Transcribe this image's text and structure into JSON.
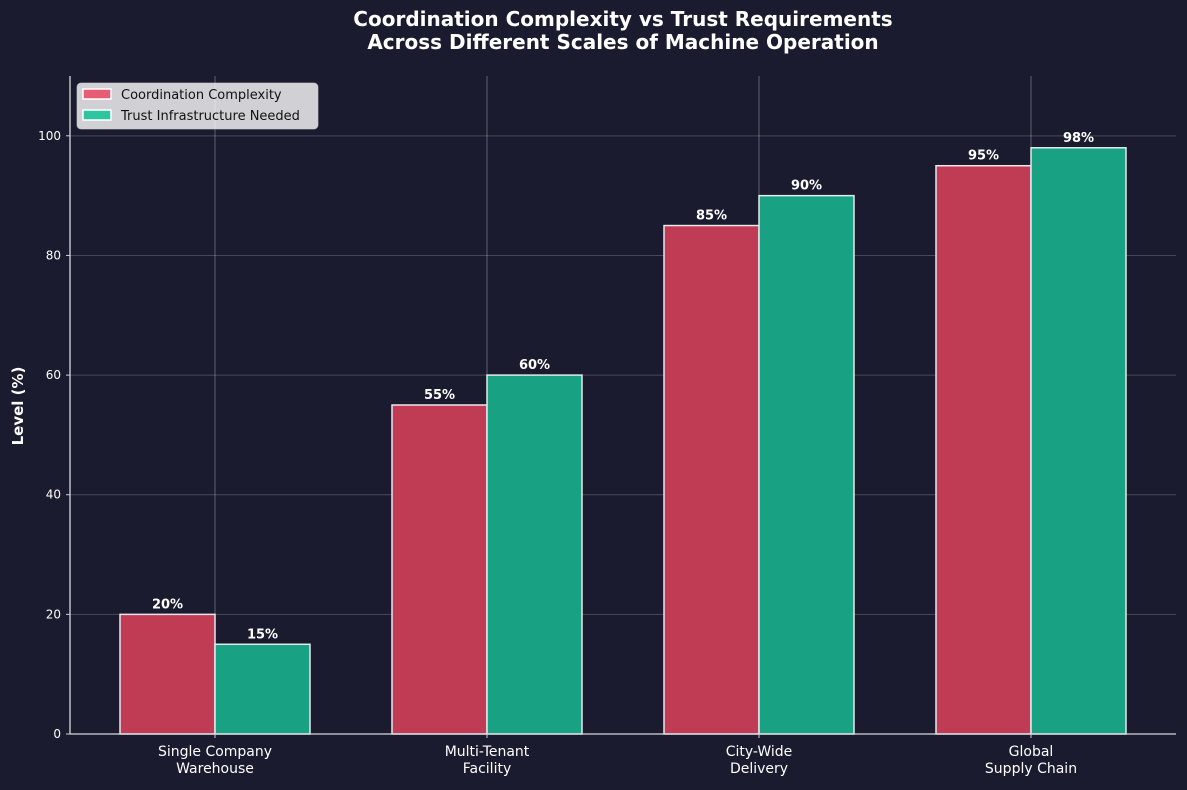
{
  "chart_data": {
    "type": "bar",
    "title": "Coordination Complexity vs Trust Requirements\nAcross Different Scales of Machine Operation",
    "title_lines": [
      "Coordination Complexity vs Trust Requirements",
      "Across Different Scales of Machine Operation"
    ],
    "xlabel": "",
    "ylabel": "Level (%)",
    "ylim": [
      0,
      110
    ],
    "yticks": [
      0,
      20,
      40,
      60,
      80,
      100
    ],
    "grid": true,
    "legend_position": "top-left",
    "categories": [
      [
        "Single Company",
        "Warehouse"
      ],
      [
        "Multi-Tenant",
        "Facility"
      ],
      [
        "City-Wide",
        "Delivery"
      ],
      [
        "Global",
        "Supply Chain"
      ]
    ],
    "series": [
      {
        "name": "Coordination Complexity",
        "color": "#c03c55",
        "legend_color": "#e85d75",
        "values": [
          20,
          55,
          85,
          95
        ]
      },
      {
        "name": "Trust Infrastructure Needed",
        "color": "#18a283",
        "legend_color": "#2ec4a0",
        "values": [
          15,
          60,
          90,
          98
        ]
      }
    ],
    "value_label_suffix": "%"
  },
  "colors": {
    "background": "#1a1b2e",
    "text": "#ffffff",
    "bar_edge": "#e8e8ee"
  }
}
